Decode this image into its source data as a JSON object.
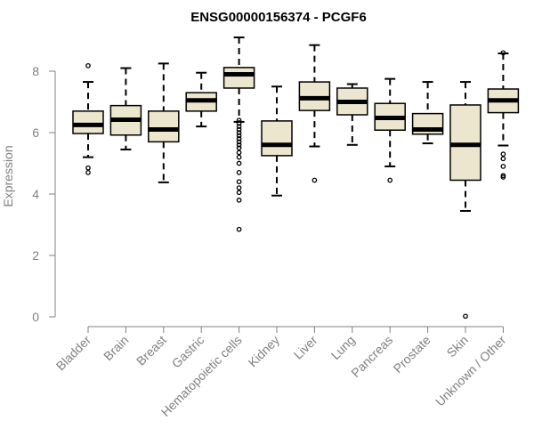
{
  "chart_data": {
    "type": "box",
    "title": "ENSG00000156374 - PCGF6",
    "xlabel": "",
    "ylabel": "Expression",
    "ylim": [
      0,
      9.2
    ],
    "yticks": [
      0,
      2,
      4,
      6,
      8
    ],
    "categories": [
      "Bladder",
      "Brain",
      "Breast",
      "Gastric",
      "Hematopoietic cells",
      "Kidney",
      "Liver",
      "Lung",
      "Pancreas",
      "Prostate",
      "Skin",
      "Unknown / Other"
    ],
    "boxes": [
      {
        "min": 5.2,
        "q1": 5.97,
        "median": 6.25,
        "q3": 6.7,
        "max": 7.65,
        "outliers": [
          8.18,
          4.85,
          4.7
        ]
      },
      {
        "min": 5.45,
        "q1": 5.92,
        "median": 6.42,
        "q3": 6.88,
        "max": 8.1,
        "outliers": []
      },
      {
        "min": 4.38,
        "q1": 5.7,
        "median": 6.1,
        "q3": 6.7,
        "max": 8.25,
        "outliers": []
      },
      {
        "min": 6.2,
        "q1": 6.7,
        "median": 7.05,
        "q3": 7.3,
        "max": 7.95,
        "outliers": []
      },
      {
        "min": 6.35,
        "q1": 7.45,
        "median": 7.9,
        "q3": 8.12,
        "max": 9.1,
        "outliers": [
          6.4,
          6.3,
          6.2,
          6.1,
          6.0,
          5.9,
          5.8,
          5.7,
          5.6,
          5.5,
          5.35,
          5.2,
          5.0,
          4.7,
          4.4,
          4.2,
          4.05,
          3.8,
          2.85
        ]
      },
      {
        "min": 3.95,
        "q1": 5.25,
        "median": 5.6,
        "q3": 6.38,
        "max": 7.5,
        "outliers": []
      },
      {
        "min": 5.55,
        "q1": 6.72,
        "median": 7.12,
        "q3": 7.65,
        "max": 8.85,
        "outliers": [
          4.45
        ]
      },
      {
        "min": 5.6,
        "q1": 6.58,
        "median": 7.0,
        "q3": 7.45,
        "max": 7.58,
        "outliers": []
      },
      {
        "min": 4.9,
        "q1": 6.08,
        "median": 6.48,
        "q3": 6.95,
        "max": 7.75,
        "outliers": [
          4.45
        ]
      },
      {
        "min": 5.65,
        "q1": 5.95,
        "median": 6.1,
        "q3": 6.62,
        "max": 7.65,
        "outliers": []
      },
      {
        "min": 3.45,
        "q1": 4.45,
        "median": 5.6,
        "q3": 6.9,
        "max": 7.65,
        "outliers": [
          0.02
        ]
      },
      {
        "min": 5.58,
        "q1": 6.65,
        "median": 7.05,
        "q3": 7.42,
        "max": 8.58,
        "outliers": [
          8.6,
          5.3,
          5.15,
          4.9,
          4.6,
          4.55
        ]
      }
    ],
    "box_fill": "#ede6cf",
    "box_stroke": "#000000",
    "axis_color": "#808080",
    "grid": false,
    "legend": "none"
  }
}
